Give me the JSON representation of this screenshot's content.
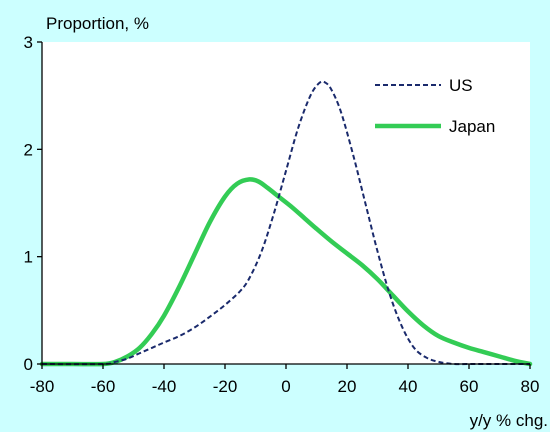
{
  "chart_data": {
    "type": "line",
    "title": "",
    "ylabel": "Proportion, %",
    "xlabel": "y/y % chg.",
    "xlim": [
      -80,
      80
    ],
    "ylim": [
      0,
      3
    ],
    "xticks": [
      "-80",
      "-60",
      "-40",
      "-20",
      "0",
      "20",
      "40",
      "60",
      "80"
    ],
    "yticks": [
      "0",
      "1",
      "2",
      "3"
    ],
    "legend_position": "top-right",
    "grid": false,
    "series": [
      {
        "name": "US",
        "style": "dashed",
        "color": "#1a2a6c",
        "x": [
          -80,
          -60,
          -56,
          -52,
          -48,
          -44,
          -40,
          -35,
          -30,
          -25,
          -20,
          -15,
          -12,
          -8,
          -4,
          0,
          4,
          8,
          11,
          13,
          15,
          18,
          22,
          26,
          30,
          34,
          38,
          42,
          46,
          50,
          55,
          60,
          70,
          80
        ],
        "y": [
          0.0,
          0.0,
          0.02,
          0.05,
          0.1,
          0.15,
          0.2,
          0.26,
          0.34,
          0.44,
          0.55,
          0.68,
          0.8,
          1.05,
          1.4,
          1.8,
          2.2,
          2.5,
          2.62,
          2.62,
          2.55,
          2.35,
          1.95,
          1.5,
          1.05,
          0.65,
          0.35,
          0.15,
          0.06,
          0.02,
          0.0,
          0.0,
          0.0,
          0.0
        ]
      },
      {
        "name": "Japan",
        "style": "solid",
        "color": "#33cc55",
        "x": [
          -80,
          -70,
          -60,
          -56,
          -52,
          -48,
          -44,
          -40,
          -35,
          -30,
          -25,
          -20,
          -16,
          -12,
          -9,
          -6,
          -2,
          2,
          6,
          10,
          15,
          20,
          25,
          30,
          35,
          40,
          45,
          50,
          55,
          60,
          65,
          70,
          75,
          80
        ],
        "y": [
          0.0,
          0.0,
          0.0,
          0.02,
          0.07,
          0.15,
          0.28,
          0.45,
          0.72,
          1.02,
          1.32,
          1.56,
          1.68,
          1.72,
          1.7,
          1.64,
          1.55,
          1.46,
          1.36,
          1.26,
          1.14,
          1.03,
          0.92,
          0.79,
          0.64,
          0.49,
          0.36,
          0.26,
          0.2,
          0.15,
          0.11,
          0.07,
          0.03,
          0.0
        ]
      }
    ]
  }
}
